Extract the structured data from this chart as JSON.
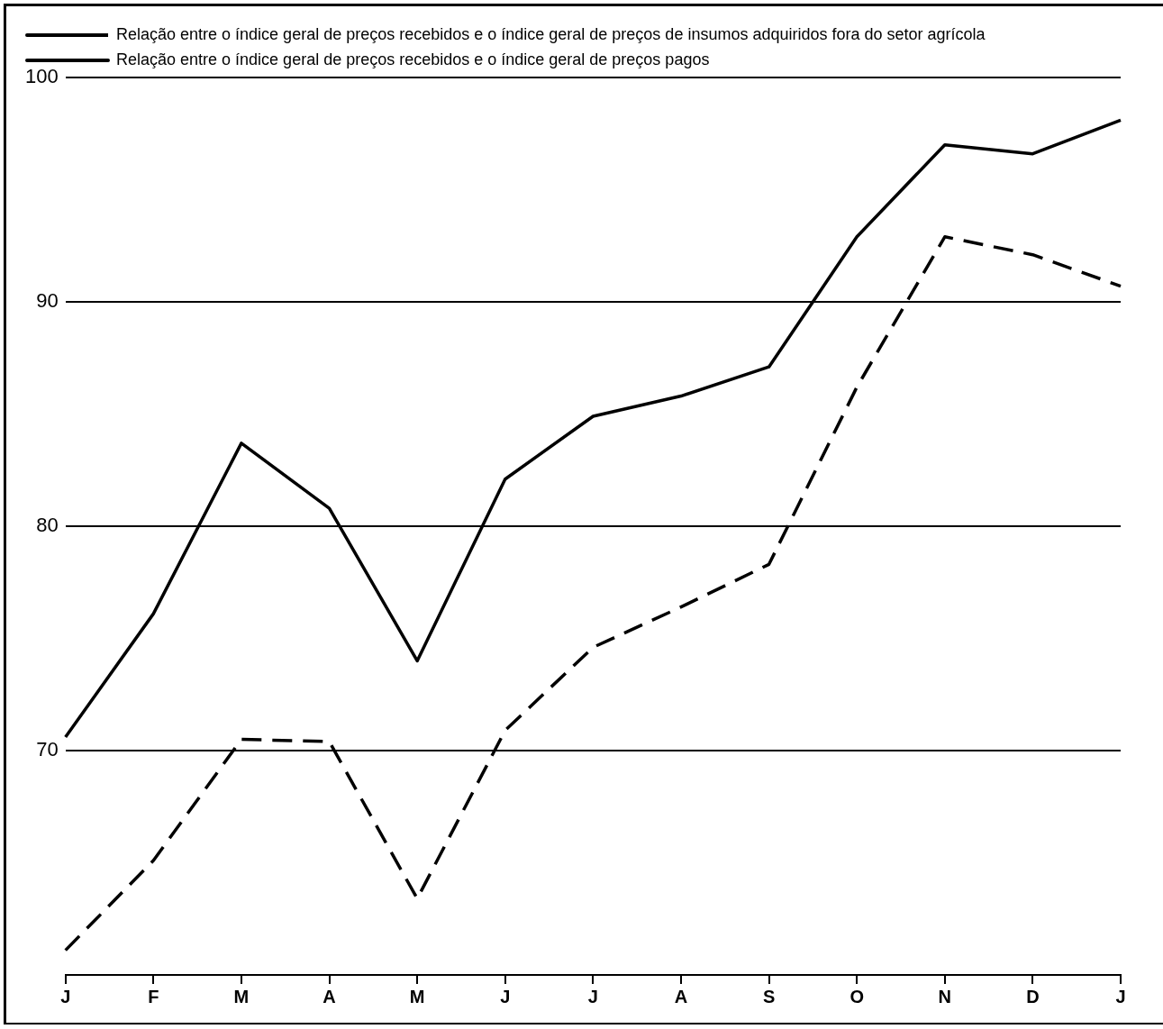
{
  "chart_data": {
    "type": "line",
    "categories": [
      "J",
      "F",
      "M",
      "A",
      "M",
      "J",
      "J",
      "A",
      "S",
      "O",
      "N",
      "D",
      "J"
    ],
    "series": [
      {
        "name": "Relação entre o índice geral de preços recebidos e o índice geral de preços de insumos adquiridos fora do setor agrícola",
        "color": "#000000",
        "line_style": "dashed",
        "values": [
          61.1,
          65.1,
          70.5,
          70.4,
          63.4,
          70.9,
          74.6,
          76.4,
          78.3,
          86.2,
          92.9,
          92.1,
          90.7
        ]
      },
      {
        "name": "Relação entre o índice geral de preços recebidos e o índice geral de preços pagos",
        "color": "#000000",
        "line_style": "solid",
        "values": [
          70.6,
          76.1,
          83.7,
          80.8,
          74.0,
          82.1,
          84.9,
          85.8,
          87.1,
          92.9,
          97.0,
          96.6,
          98.1
        ]
      }
    ],
    "ylim": [
      60,
      100
    ],
    "yticks": [
      70,
      80,
      90,
      100
    ],
    "grid": "y",
    "legend": "top left",
    "marker": "none"
  }
}
